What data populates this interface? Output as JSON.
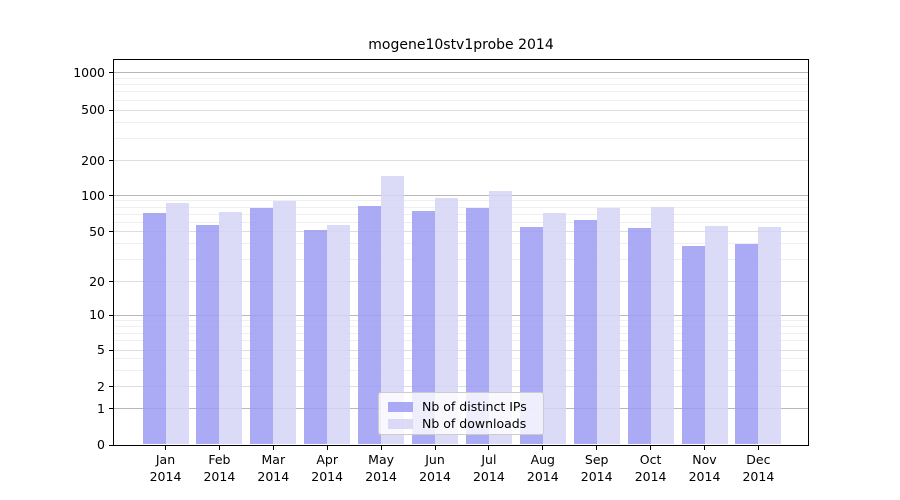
{
  "title": "mogene10stv1probe 2014",
  "chart_data": {
    "type": "bar",
    "title": "mogene10stv1probe 2014",
    "categories": [
      "Jan",
      "Feb",
      "Mar",
      "Apr",
      "May",
      "Jun",
      "Jul",
      "Aug",
      "Sep",
      "Oct",
      "Nov",
      "Dec"
    ],
    "x_tick_second_line": "2014",
    "series": [
      {
        "name": "Nb of distinct IPs",
        "color": "#aaaaf5",
        "values": [
          72,
          57,
          78,
          51,
          82,
          74,
          78,
          55,
          62,
          54,
          38,
          40
        ]
      },
      {
        "name": "Nb of downloads",
        "color": "#dbdbf8",
        "values": [
          87,
          73,
          90,
          57,
          147,
          95,
          110,
          72,
          79,
          80,
          56,
          55
        ]
      }
    ],
    "yscale": "symlog",
    "ylim": [
      0,
      1000
    ],
    "yticks": [
      0,
      1,
      2,
      5,
      10,
      20,
      50,
      100,
      200,
      500,
      1000
    ],
    "minor_yticks": [
      3,
      4,
      6,
      7,
      8,
      9,
      30,
      40,
      60,
      70,
      80,
      90,
      300,
      400,
      600,
      700,
      800,
      900
    ],
    "grid": true,
    "grid_color_decade": "#b8b8b8",
    "grid_color_major": "#dddddd",
    "grid_color_minor": "#efefef",
    "legend_position": "lower-center"
  },
  "legend": {
    "items": [
      {
        "label": "Nb of distinct IPs",
        "color": "#aaaaf5"
      },
      {
        "label": "Nb of downloads",
        "color": "#dbdbf8"
      }
    ]
  }
}
